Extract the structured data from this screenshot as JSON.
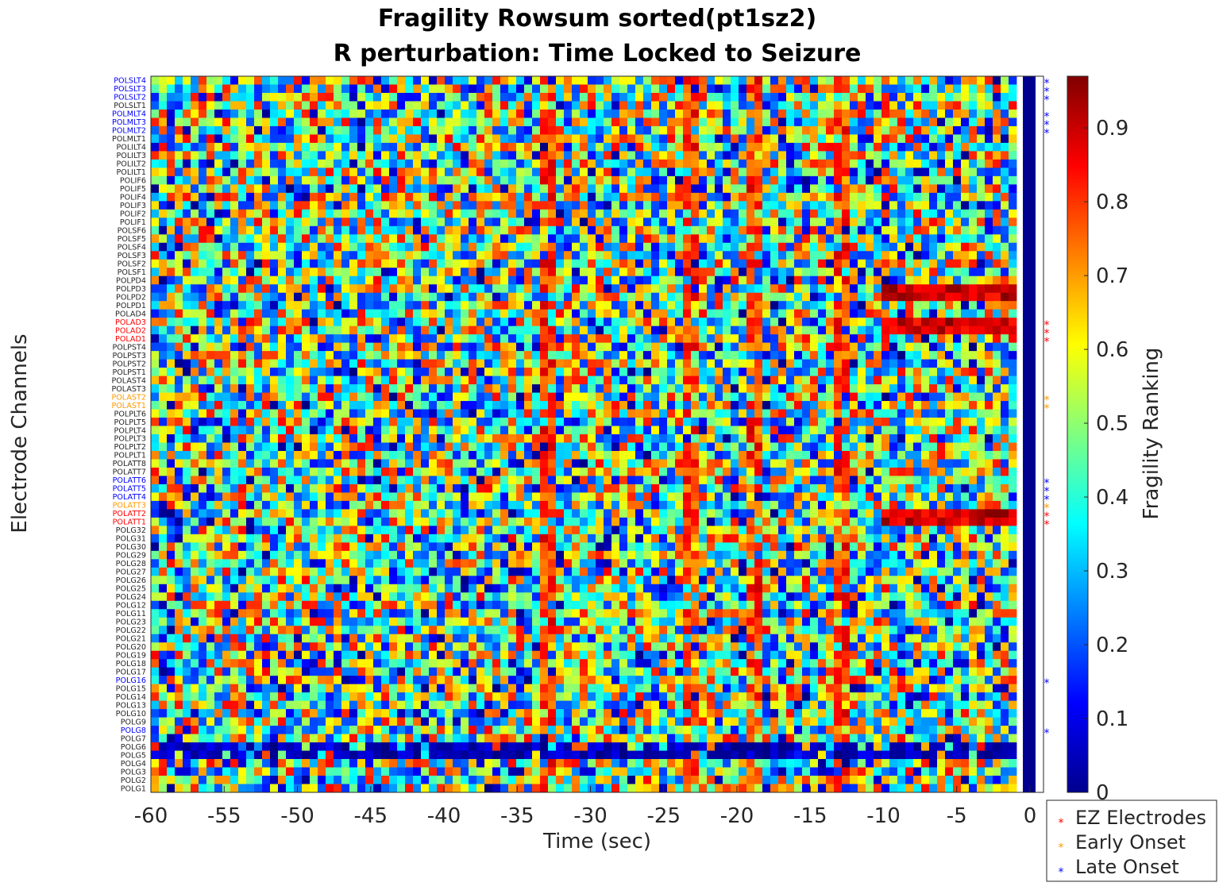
{
  "chart_data": {
    "type": "heatmap",
    "title_line1": "Fragility Rowsum sorted(pt1sz2)",
    "title_line2": "R perturbation:  Time Locked to Seizure",
    "xlabel": "Time (sec)",
    "ylabel": "Electrode Channels",
    "colorbar_label": "Fragility Ranking",
    "colormap": "jet",
    "xlim": [
      -60,
      0
    ],
    "clim": [
      0,
      0.97
    ],
    "xticks": [
      "-60",
      "-55",
      "-50",
      "-45",
      "-40",
      "-35",
      "-30",
      "-25",
      "-20",
      "-15",
      "-10",
      "-5",
      "0"
    ],
    "xtick_values": [
      -60,
      -55,
      -50,
      -45,
      -40,
      -35,
      -30,
      -25,
      -20,
      -15,
      -10,
      -5,
      0
    ],
    "cticks": [
      "0",
      "0.1",
      "0.2",
      "0.3",
      "0.4",
      "0.5",
      "0.6",
      "0.7",
      "0.8",
      "0.9"
    ],
    "ctick_values": [
      0,
      0.1,
      0.2,
      0.3,
      0.4,
      0.5,
      0.6,
      0.7,
      0.8,
      0.9
    ],
    "colors": {
      "ez": "#ff0000",
      "early": "#ff9900",
      "late": "#0000ff",
      "normal": "#262626",
      "marker_column": "#00008f"
    },
    "channels": [
      {
        "name": "POLSLT4",
        "group": "late"
      },
      {
        "name": "POLSLT3",
        "group": "late"
      },
      {
        "name": "POLSLT2",
        "group": "late"
      },
      {
        "name": "POLSLT1",
        "group": "none"
      },
      {
        "name": "POLMLT4",
        "group": "late"
      },
      {
        "name": "POLMLT3",
        "group": "late"
      },
      {
        "name": "POLMLT2",
        "group": "late"
      },
      {
        "name": "POLMLT1",
        "group": "none"
      },
      {
        "name": "POLILT4",
        "group": "none"
      },
      {
        "name": "POLILT3",
        "group": "none"
      },
      {
        "name": "POLILT2",
        "group": "none"
      },
      {
        "name": "POLILT1",
        "group": "none"
      },
      {
        "name": "POLIF6",
        "group": "none"
      },
      {
        "name": "POLIF5",
        "group": "none"
      },
      {
        "name": "POLIF4",
        "group": "none"
      },
      {
        "name": "POLIF3",
        "group": "none"
      },
      {
        "name": "POLIF2",
        "group": "none"
      },
      {
        "name": "POLIF1",
        "group": "none"
      },
      {
        "name": "POLSF6",
        "group": "none"
      },
      {
        "name": "POLSF5",
        "group": "none"
      },
      {
        "name": "POLSF4",
        "group": "none"
      },
      {
        "name": "POLSF3",
        "group": "none"
      },
      {
        "name": "POLSF2",
        "group": "none"
      },
      {
        "name": "POLSF1",
        "group": "none"
      },
      {
        "name": "POLPD4",
        "group": "none"
      },
      {
        "name": "POLPD3",
        "group": "none"
      },
      {
        "name": "POLPD2",
        "group": "none"
      },
      {
        "name": "POLPD1",
        "group": "none"
      },
      {
        "name": "POLAD4",
        "group": "none"
      },
      {
        "name": "POLAD3",
        "group": "ez"
      },
      {
        "name": "POLAD2",
        "group": "ez"
      },
      {
        "name": "POLAD1",
        "group": "ez"
      },
      {
        "name": "POLPST4",
        "group": "none"
      },
      {
        "name": "POLPST3",
        "group": "none"
      },
      {
        "name": "POLPST2",
        "group": "none"
      },
      {
        "name": "POLPST1",
        "group": "none"
      },
      {
        "name": "POLAST4",
        "group": "none"
      },
      {
        "name": "POLAST3",
        "group": "none"
      },
      {
        "name": "POLAST2",
        "group": "early"
      },
      {
        "name": "POLAST1",
        "group": "early"
      },
      {
        "name": "POLPLT6",
        "group": "none"
      },
      {
        "name": "POLPLT5",
        "group": "none"
      },
      {
        "name": "POLPLT4",
        "group": "none"
      },
      {
        "name": "POLPLT3",
        "group": "none"
      },
      {
        "name": "POLPLT2",
        "group": "none"
      },
      {
        "name": "POLPLT1",
        "group": "none"
      },
      {
        "name": "POLATT8",
        "group": "none"
      },
      {
        "name": "POLATT7",
        "group": "none"
      },
      {
        "name": "POLATT6",
        "group": "late"
      },
      {
        "name": "POLATT5",
        "group": "late"
      },
      {
        "name": "POLATT4",
        "group": "late"
      },
      {
        "name": "POLATT3",
        "group": "early"
      },
      {
        "name": "POLATT2",
        "group": "ez"
      },
      {
        "name": "POLATT1",
        "group": "ez"
      },
      {
        "name": "POLG32",
        "group": "none"
      },
      {
        "name": "POLG31",
        "group": "none"
      },
      {
        "name": "POLG30",
        "group": "none"
      },
      {
        "name": "POLG29",
        "group": "none"
      },
      {
        "name": "POLG28",
        "group": "none"
      },
      {
        "name": "POLG27",
        "group": "none"
      },
      {
        "name": "POLG26",
        "group": "none"
      },
      {
        "name": "POLG25",
        "group": "none"
      },
      {
        "name": "POLG24",
        "group": "none"
      },
      {
        "name": "POLG12",
        "group": "none"
      },
      {
        "name": "POLG11",
        "group": "none"
      },
      {
        "name": "POLG23",
        "group": "none"
      },
      {
        "name": "POLG22",
        "group": "none"
      },
      {
        "name": "POLG21",
        "group": "none"
      },
      {
        "name": "POLG20",
        "group": "none"
      },
      {
        "name": "POLG19",
        "group": "none"
      },
      {
        "name": "POLG18",
        "group": "none"
      },
      {
        "name": "POLG17",
        "group": "none"
      },
      {
        "name": "POLG16",
        "group": "late"
      },
      {
        "name": "POLG15",
        "group": "none"
      },
      {
        "name": "POLG14",
        "group": "none"
      },
      {
        "name": "POLG13",
        "group": "none"
      },
      {
        "name": "POLG10",
        "group": "none"
      },
      {
        "name": "POLG9",
        "group": "none"
      },
      {
        "name": "POLG8",
        "group": "late"
      },
      {
        "name": "POLG7",
        "group": "none"
      },
      {
        "name": "POLG6",
        "group": "none"
      },
      {
        "name": "POLG5",
        "group": "none"
      },
      {
        "name": "POLG4",
        "group": "none"
      },
      {
        "name": "POLG3",
        "group": "none"
      },
      {
        "name": "POLG2",
        "group": "none"
      },
      {
        "name": "POLG1",
        "group": "none"
      }
    ],
    "legend": [
      {
        "label": "EZ Electrodes",
        "group": "ez"
      },
      {
        "label": "Early Onset",
        "group": "early"
      },
      {
        "label": "Late Onset",
        "group": "late"
      }
    ],
    "notes": {
      "hot_block_rows_ez": [
        "POLPD3",
        "POLPD2",
        "POLAD3",
        "POLAD2",
        "POLATT2",
        "POLATT1"
      ],
      "hot_block_time_range": [
        -10,
        -1
      ],
      "low_rows": [
        "POLG6",
        "POLG5"
      ],
      "hot_columns_time": [
        -33,
        -23,
        -19,
        -13
      ]
    }
  }
}
